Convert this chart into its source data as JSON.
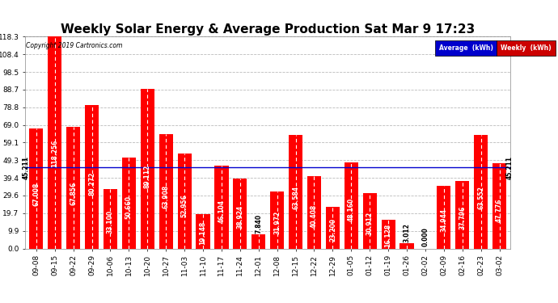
{
  "title": "Weekly Solar Energy & Average Production Sat Mar 9 17:23",
  "copyright": "Copyright 2019 Cartronics.com",
  "categories": [
    "09-08",
    "09-15",
    "09-22",
    "09-29",
    "10-06",
    "10-13",
    "10-20",
    "10-27",
    "11-03",
    "11-10",
    "11-17",
    "11-24",
    "12-01",
    "12-08",
    "12-15",
    "12-22",
    "12-29",
    "01-05",
    "01-12",
    "01-19",
    "01-26",
    "02-02",
    "02-09",
    "02-16",
    "02-23",
    "03-02"
  ],
  "values": [
    67.008,
    118.256,
    67.856,
    80.272,
    33.1,
    50.66,
    89.112,
    63.908,
    52.956,
    19.148,
    46.104,
    38.924,
    7.84,
    31.972,
    63.584,
    40.408,
    23.2,
    48.16,
    30.912,
    16.128,
    3.012,
    0.0,
    34.944,
    37.796,
    63.552,
    47.776
  ],
  "average": 45.211,
  "bar_color": "#ff0000",
  "average_line_color": "#0000cd",
  "background_color": "#ffffff",
  "plot_bg_color": "#ffffff",
  "grid_color": "#bbbbbb",
  "title_fontsize": 11,
  "tick_fontsize": 6.5,
  "value_fontsize": 5.5,
  "avg_label_fontsize": 5.5,
  "ylim": [
    0,
    118.3
  ],
  "yticks": [
    0.0,
    9.9,
    19.7,
    29.6,
    39.4,
    49.3,
    59.1,
    69.0,
    78.8,
    88.7,
    98.5,
    108.4,
    118.3
  ],
  "legend_avg_bg": "#0000cc",
  "legend_weekly_bg": "#cc0000",
  "legend_avg_text": "Average  (kWh)",
  "legend_weekly_text": "Weekly  (kWh)"
}
